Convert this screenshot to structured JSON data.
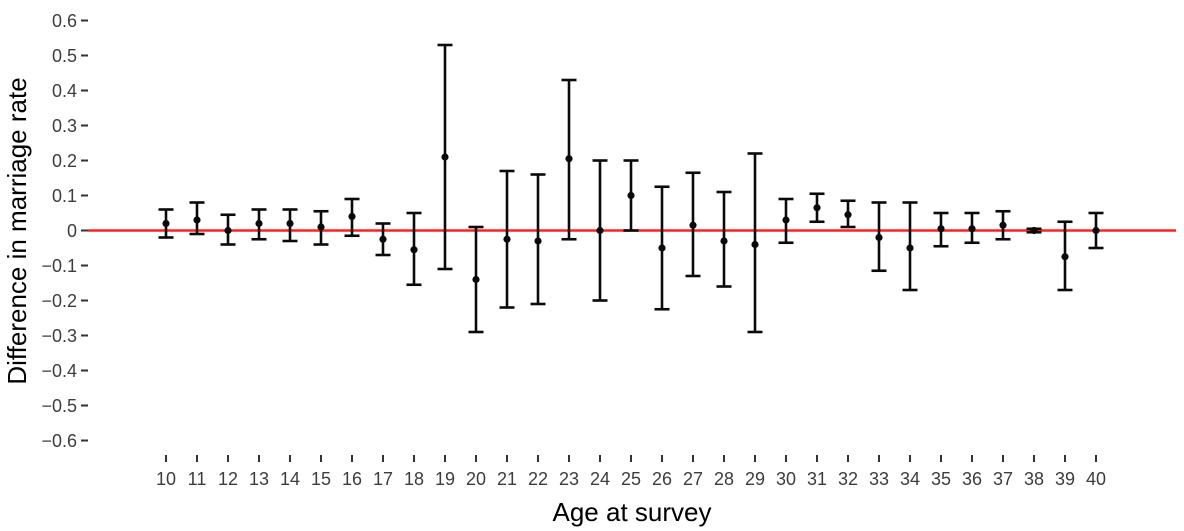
{
  "chart_data": {
    "type": "scatter",
    "subtype": "pointrange-error-bars",
    "title": "",
    "xlabel": "Age at survey",
    "ylabel": "Difference in marriage rate",
    "ylim": [
      -0.65,
      0.65
    ],
    "grid": false,
    "legend": false,
    "zero_line": {
      "y": 0,
      "color": "#ff2121"
    },
    "point_color": "#0a0a0a",
    "bar_color": "#0a0a0a",
    "tick_color": "#333333",
    "y_ticks": [
      {
        "value": 0.6,
        "label": "0.6"
      },
      {
        "value": 0.5,
        "label": "0.5"
      },
      {
        "value": 0.4,
        "label": "0.4"
      },
      {
        "value": 0.3,
        "label": "0.3"
      },
      {
        "value": 0.2,
        "label": "0.2"
      },
      {
        "value": 0.1,
        "label": "0.1"
      },
      {
        "value": 0.0,
        "label": "0"
      },
      {
        "value": -0.1,
        "label": "−0.1"
      },
      {
        "value": -0.2,
        "label": "−0.2"
      },
      {
        "value": -0.3,
        "label": "−0.3"
      },
      {
        "value": -0.4,
        "label": "−0.4"
      },
      {
        "value": -0.5,
        "label": "−0.5"
      },
      {
        "value": -0.6,
        "label": "−0.6"
      }
    ],
    "x_categories": [
      10,
      11,
      12,
      13,
      14,
      15,
      16,
      17,
      18,
      19,
      20,
      21,
      22,
      23,
      24,
      25,
      26,
      27,
      28,
      29,
      30,
      31,
      32,
      33,
      34,
      35,
      36,
      37,
      38,
      39,
      40
    ],
    "points": [
      {
        "age": 10,
        "est": 0.02,
        "lo": -0.02,
        "hi": 0.06
      },
      {
        "age": 11,
        "est": 0.03,
        "lo": -0.01,
        "hi": 0.08
      },
      {
        "age": 12,
        "est": 0.0,
        "lo": -0.04,
        "hi": 0.045
      },
      {
        "age": 13,
        "est": 0.02,
        "lo": -0.025,
        "hi": 0.06
      },
      {
        "age": 14,
        "est": 0.02,
        "lo": -0.03,
        "hi": 0.06
      },
      {
        "age": 15,
        "est": 0.01,
        "lo": -0.04,
        "hi": 0.055
      },
      {
        "age": 16,
        "est": 0.04,
        "lo": -0.015,
        "hi": 0.09
      },
      {
        "age": 17,
        "est": -0.025,
        "lo": -0.07,
        "hi": 0.02
      },
      {
        "age": 18,
        "est": -0.055,
        "lo": -0.155,
        "hi": 0.05
      },
      {
        "age": 19,
        "est": 0.21,
        "lo": -0.11,
        "hi": 0.53
      },
      {
        "age": 20,
        "est": -0.14,
        "lo": -0.29,
        "hi": 0.01
      },
      {
        "age": 21,
        "est": -0.025,
        "lo": -0.22,
        "hi": 0.17
      },
      {
        "age": 22,
        "est": -0.03,
        "lo": -0.21,
        "hi": 0.16
      },
      {
        "age": 23,
        "est": 0.205,
        "lo": -0.025,
        "hi": 0.43
      },
      {
        "age": 24,
        "est": 0.0,
        "lo": -0.2,
        "hi": 0.2
      },
      {
        "age": 25,
        "est": 0.1,
        "lo": 0.0,
        "hi": 0.2
      },
      {
        "age": 26,
        "est": -0.05,
        "lo": -0.225,
        "hi": 0.125
      },
      {
        "age": 27,
        "est": 0.015,
        "lo": -0.13,
        "hi": 0.165
      },
      {
        "age": 28,
        "est": -0.03,
        "lo": -0.16,
        "hi": 0.11
      },
      {
        "age": 29,
        "est": -0.04,
        "lo": -0.29,
        "hi": 0.22
      },
      {
        "age": 30,
        "est": 0.03,
        "lo": -0.035,
        "hi": 0.09
      },
      {
        "age": 31,
        "est": 0.065,
        "lo": 0.025,
        "hi": 0.105
      },
      {
        "age": 32,
        "est": 0.045,
        "lo": 0.01,
        "hi": 0.085
      },
      {
        "age": 33,
        "est": -0.02,
        "lo": -0.115,
        "hi": 0.08
      },
      {
        "age": 34,
        "est": -0.05,
        "lo": -0.17,
        "hi": 0.08
      },
      {
        "age": 35,
        "est": 0.005,
        "lo": -0.045,
        "hi": 0.05
      },
      {
        "age": 36,
        "est": 0.005,
        "lo": -0.035,
        "hi": 0.05
      },
      {
        "age": 37,
        "est": 0.015,
        "lo": -0.025,
        "hi": 0.055
      },
      {
        "age": 38,
        "est": 0.0,
        "lo": -0.005,
        "hi": 0.005
      },
      {
        "age": 39,
        "est": -0.075,
        "lo": -0.17,
        "hi": 0.025
      },
      {
        "age": 40,
        "est": 0.0,
        "lo": -0.05,
        "hi": 0.05
      }
    ]
  }
}
